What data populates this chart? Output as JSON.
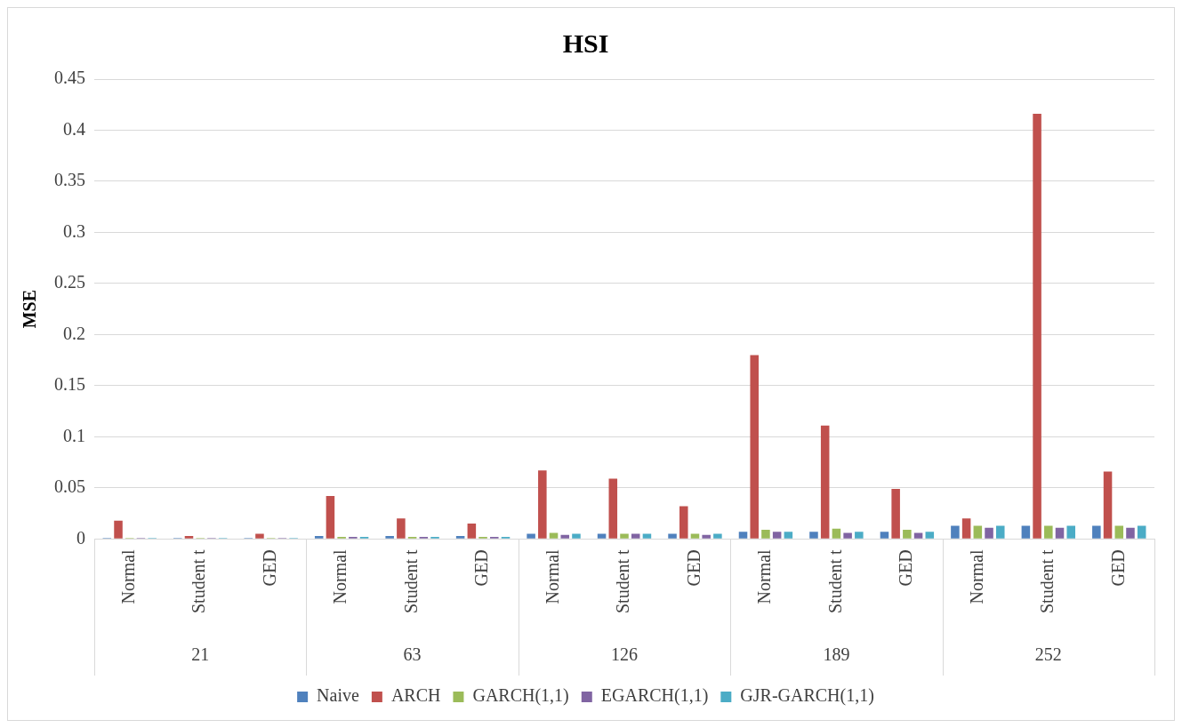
{
  "chart_data": {
    "type": "bar",
    "title": "HSI",
    "ylabel": "MSE",
    "categories": [
      "Normal",
      "Student t",
      "GED",
      "Normal",
      "Student t",
      "GED",
      "Normal",
      "Student t",
      "GED",
      "Normal",
      "Student t",
      "GED",
      "Normal",
      "Student t",
      "GED"
    ],
    "annotations": [
      "21",
      "63",
      "126",
      "189",
      "252"
    ],
    "series": [
      {
        "name": "Naive",
        "color": "#4f81bd",
        "values": [
          0.001,
          0.001,
          0.001,
          0.003,
          0.003,
          0.003,
          0.005,
          0.005,
          0.005,
          0.007,
          0.007,
          0.007,
          0.013,
          0.013,
          0.013
        ]
      },
      {
        "name": "ARCH",
        "color": "#c0504d",
        "values": [
          0.018,
          0.003,
          0.005,
          0.042,
          0.02,
          0.015,
          0.067,
          0.059,
          0.032,
          0.18,
          0.111,
          0.049,
          0.02,
          0.416,
          0.066
        ]
      },
      {
        "name": "GARCH(1,1)",
        "color": "#9bbb59",
        "values": [
          0.001,
          0.001,
          0.001,
          0.002,
          0.002,
          0.002,
          0.006,
          0.005,
          0.005,
          0.009,
          0.01,
          0.009,
          0.013,
          0.013,
          0.013
        ]
      },
      {
        "name": "EGARCH(1,1)",
        "color": "#8064a2",
        "values": [
          0.001,
          0.001,
          0.001,
          0.002,
          0.002,
          0.002,
          0.004,
          0.005,
          0.004,
          0.007,
          0.006,
          0.006,
          0.011,
          0.011,
          0.011
        ]
      },
      {
        "name": "GJR-GARCH(1,1)",
        "color": "#4bacc6",
        "values": [
          0.001,
          0.001,
          0.001,
          0.002,
          0.002,
          0.002,
          0.005,
          0.005,
          0.005,
          0.007,
          0.007,
          0.007,
          0.013,
          0.013,
          0.013
        ]
      }
    ],
    "ylim": [
      0,
      0.45
    ],
    "yticks": [
      0,
      0.05,
      0.1,
      0.15,
      0.2,
      0.25,
      0.3,
      0.35,
      0.4,
      0.45
    ],
    "grid": "y",
    "legend": "bottom"
  }
}
